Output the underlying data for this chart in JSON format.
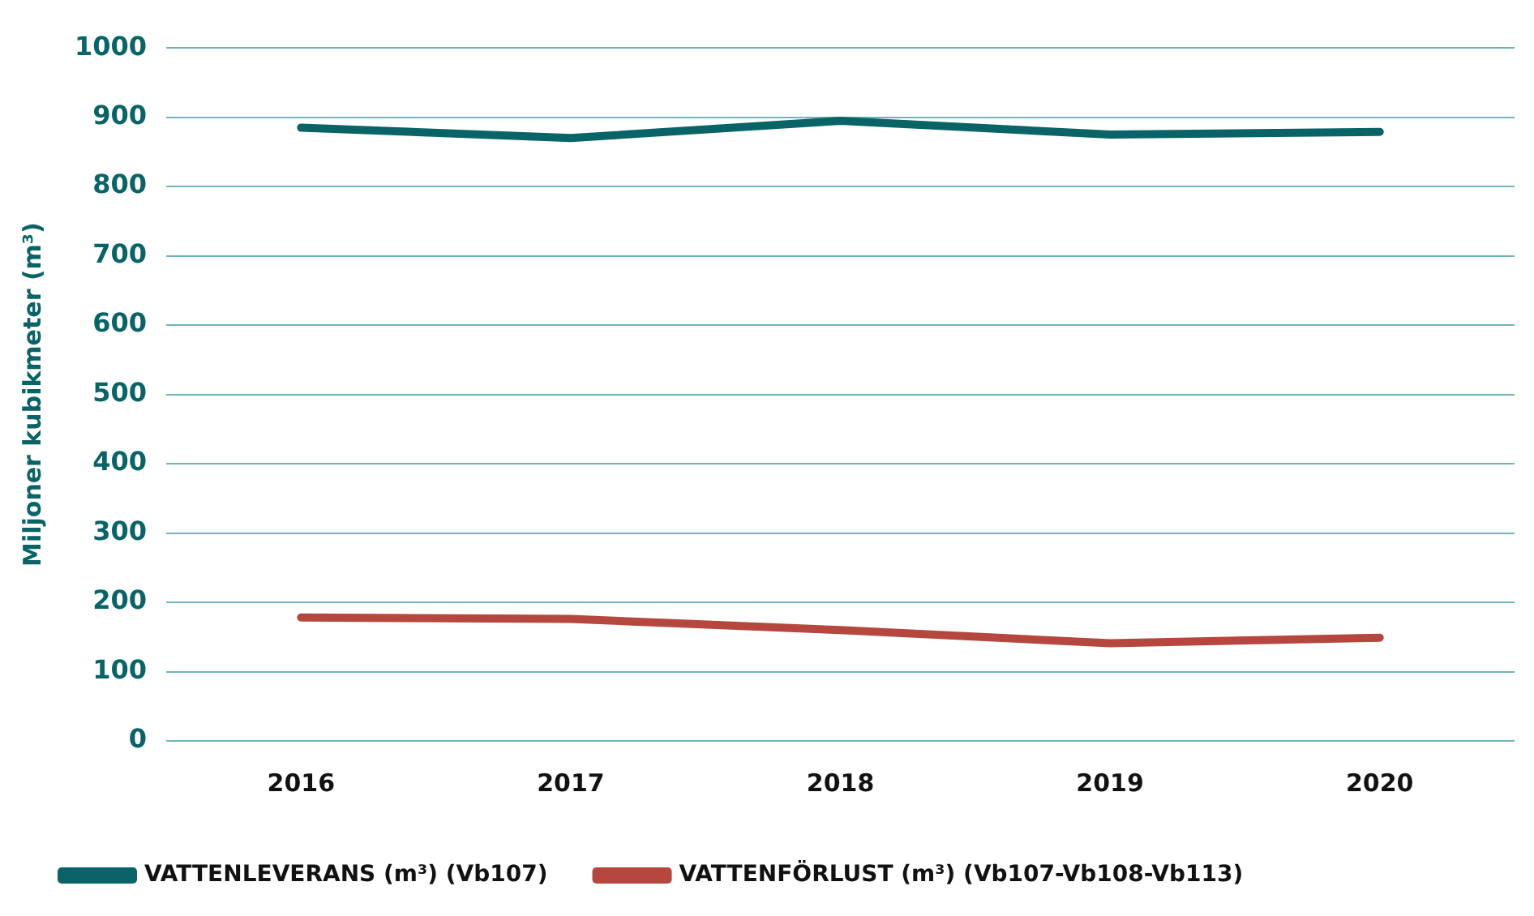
{
  "chart_data": {
    "type": "line",
    "ylabel": "Miljoner kubikmeter (m³)",
    "categories": [
      "2016",
      "2017",
      "2018",
      "2019",
      "2020"
    ],
    "series": [
      {
        "name": "VATTENLEVERANS (m³) (Vb107)",
        "color": "#0a6467",
        "values": [
          885,
          870,
          895,
          875,
          879
        ]
      },
      {
        "name": "VATTENFÖRLUST (m³) (Vb107-Vb108-Vb113)",
        "color": "#b5473e",
        "values": [
          178,
          176,
          160,
          141,
          149
        ]
      }
    ],
    "ylim": [
      0,
      1000
    ],
    "yticks": [
      0,
      100,
      200,
      300,
      400,
      500,
      600,
      700,
      800,
      900,
      1000
    ],
    "grid": "y",
    "legend": "bottom",
    "marker": "none",
    "line_style": "solid"
  }
}
